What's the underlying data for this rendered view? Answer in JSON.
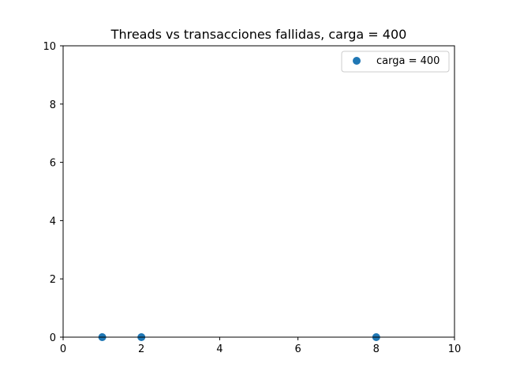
{
  "chart_data": {
    "type": "scatter",
    "title": "Threads vs transacciones fallidas, carga = 400",
    "xlabel": "",
    "ylabel": "",
    "xlim": [
      0,
      10
    ],
    "ylim": [
      0,
      10
    ],
    "xticks": [
      0,
      2,
      4,
      6,
      8,
      10
    ],
    "yticks": [
      0,
      2,
      4,
      6,
      8,
      10
    ],
    "grid": false,
    "legend_position": "top-right",
    "series": [
      {
        "name": "carga = 400",
        "color": "#1f77b4",
        "points": [
          {
            "x": 1,
            "y": 0
          },
          {
            "x": 2,
            "y": 0
          },
          {
            "x": 8,
            "y": 0
          }
        ]
      }
    ]
  }
}
